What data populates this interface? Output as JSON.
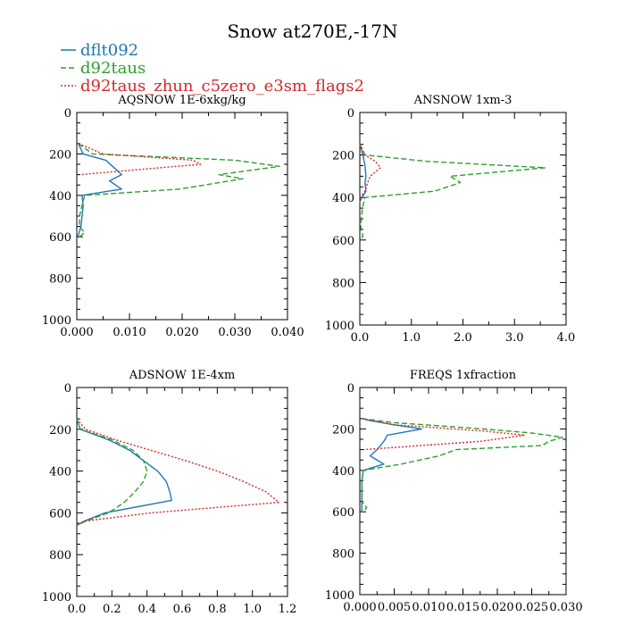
{
  "title": "Snow at270E,-17N",
  "legend": [
    {
      "name": "dflt092",
      "color": "#1f77b4",
      "dash": "solid"
    },
    {
      "name": "d92taus",
      "color": "#2ca02c",
      "dash": "dash"
    },
    {
      "name": "d92taus_zhun_c5zero_e3sm_flags2",
      "color": "#d62728",
      "dash": "dot"
    }
  ],
  "chart_data": [
    {
      "type": "line",
      "title": "AQSNOW  1E-6xkg/kg",
      "xlim": [
        0,
        0.04
      ],
      "xticks": [
        0,
        0.01,
        0.02,
        0.03,
        0.04
      ],
      "xtick_labels": [
        "0.000",
        "0.010",
        "0.020",
        "0.030",
        "0.040"
      ],
      "ylim": [
        0,
        1000
      ],
      "yticks": [
        0,
        200,
        400,
        600,
        800,
        1000
      ],
      "ytick_labels": [
        "0",
        "200",
        "400",
        "600",
        "800",
        "1000"
      ],
      "y_inverted": true,
      "series": [
        {
          "name": "dflt092",
          "y": [
            150,
            200,
            230,
            260,
            300,
            330,
            370,
            400,
            450,
            500,
            550,
            600
          ],
          "x": [
            0.0003,
            0.0012,
            0.0055,
            0.0068,
            0.0085,
            0.0062,
            0.0085,
            0.001,
            0.0012,
            0.001,
            0.0008,
            0.0002
          ]
        },
        {
          "name": "d92taus",
          "y": [
            150,
            200,
            230,
            260,
            300,
            320,
            370,
            400,
            450,
            500,
            550,
            580,
            600
          ],
          "x": [
            0.0003,
            0.003,
            0.03,
            0.0385,
            0.027,
            0.0315,
            0.0195,
            0.0015,
            0.001,
            0.0005,
            0.0005,
            0.0015,
            0.0005
          ]
        },
        {
          "name": "d92taus_zhun_c5zero_e3sm_flags2",
          "y": [
            150,
            200,
            230,
            250,
            300
          ],
          "x": [
            0.0003,
            0.005,
            0.022,
            0.0235,
            0.0005
          ]
        }
      ]
    },
    {
      "type": "line",
      "title": "ANSNOW  1xm-3",
      "xlim": [
        0,
        4
      ],
      "xticks": [
        0,
        1,
        2,
        3,
        4
      ],
      "xtick_labels": [
        "0.0",
        "1.0",
        "2.0",
        "3.0",
        "4.0"
      ],
      "ylim": [
        0,
        1000
      ],
      "yticks": [
        0,
        200,
        400,
        600,
        800,
        1000
      ],
      "ytick_labels": [
        "0",
        "200",
        "400",
        "600",
        "800",
        "1000"
      ],
      "y_inverted": true,
      "series": [
        {
          "name": "dflt092",
          "y": [
            150,
            200,
            250,
            300,
            330,
            370,
            400,
            420
          ],
          "x": [
            0.0,
            0.06,
            0.1,
            0.12,
            0.1,
            0.12,
            0.04,
            0.0
          ]
        },
        {
          "name": "d92taus",
          "y": [
            150,
            200,
            230,
            260,
            300,
            330,
            370,
            400,
            450,
            500,
            550,
            580,
            600
          ],
          "x": [
            0.0,
            0.1,
            1.3,
            3.6,
            1.75,
            1.95,
            1.45,
            0.1,
            0.05,
            0.03,
            0.02,
            0.06,
            0.02
          ]
        },
        {
          "name": "d92taus_zhun_c5zero_e3sm_flags2",
          "y": [
            150,
            200,
            230,
            260,
            300,
            330,
            370,
            400
          ],
          "x": [
            0.0,
            0.1,
            0.3,
            0.4,
            0.2,
            0.15,
            0.1,
            0.0
          ]
        }
      ]
    },
    {
      "type": "line",
      "title": "ADSNOW  1E-4xm",
      "xlim": [
        0,
        1.2
      ],
      "xticks": [
        0,
        0.2,
        0.4,
        0.6,
        0.8,
        1.0,
        1.2
      ],
      "xtick_labels": [
        "0.0",
        "0.2",
        "0.4",
        "0.6",
        "0.8",
        "1.0",
        "1.2"
      ],
      "ylim": [
        0,
        1000
      ],
      "yticks": [
        0,
        200,
        400,
        600,
        800,
        1000
      ],
      "ytick_labels": [
        "0",
        "200",
        "400",
        "600",
        "800",
        "1000"
      ],
      "y_inverted": true,
      "series": [
        {
          "name": "dflt092",
          "y": [
            150,
            200,
            250,
            300,
            350,
            400,
            450,
            500,
            540,
            600,
            640,
            660
          ],
          "x": [
            0.0,
            0.02,
            0.18,
            0.3,
            0.38,
            0.46,
            0.51,
            0.53,
            0.54,
            0.16,
            0.04,
            0.0
          ]
        },
        {
          "name": "d92taus",
          "y": [
            150,
            200,
            250,
            300,
            350,
            400,
            450,
            500,
            550,
            600,
            640,
            660
          ],
          "x": [
            0.0,
            0.02,
            0.2,
            0.32,
            0.38,
            0.4,
            0.38,
            0.33,
            0.27,
            0.18,
            0.05,
            0.0
          ]
        },
        {
          "name": "d92taus_zhun_c5zero_e3sm_flags2",
          "y": [
            150,
            200,
            250,
            300,
            350,
            400,
            450,
            500,
            550,
            600,
            640,
            660
          ],
          "x": [
            0.0,
            0.05,
            0.22,
            0.42,
            0.62,
            0.8,
            0.95,
            1.08,
            1.15,
            0.42,
            0.04,
            0.0
          ]
        }
      ]
    },
    {
      "type": "line",
      "title": "FREQS  1xfraction",
      "xlim": [
        0,
        0.03
      ],
      "xticks": [
        0,
        0.005,
        0.01,
        0.015,
        0.02,
        0.025,
        0.03
      ],
      "xtick_labels": [
        "0.000",
        "0.005",
        "0.010",
        "0.015",
        "0.020",
        "0.025",
        "0.030"
      ],
      "ylim": [
        0,
        1000
      ],
      "yticks": [
        0,
        200,
        400,
        600,
        800,
        1000
      ],
      "ytick_labels": [
        "0",
        "200",
        "400",
        "600",
        "800",
        "1000"
      ],
      "y_inverted": true,
      "series": [
        {
          "name": "dflt092",
          "y": [
            150,
            160,
            180,
            200,
            230,
            260,
            300,
            330,
            370,
            400,
            450,
            500,
            550,
            600
          ],
          "x": [
            0.0003,
            0.0015,
            0.005,
            0.009,
            0.004,
            0.0035,
            0.0025,
            0.0015,
            0.0035,
            0.0005,
            0.0003,
            0.0003,
            0.0003,
            0.0003
          ]
        },
        {
          "name": "d92taus",
          "y": [
            150,
            170,
            200,
            220,
            240,
            260,
            280,
            300,
            330,
            370,
            400,
            450,
            500,
            550,
            580,
            600
          ],
          "x": [
            0.0003,
            0.005,
            0.018,
            0.025,
            0.0295,
            0.0275,
            0.0265,
            0.014,
            0.0115,
            0.006,
            0.0005,
            0.0003,
            0.0003,
            0.0003,
            0.001,
            0.0005
          ]
        },
        {
          "name": "d92taus_zhun_c5zero_e3sm_flags2",
          "y": [
            150,
            180,
            210,
            230,
            260,
            300
          ],
          "x": [
            0.0003,
            0.005,
            0.018,
            0.024,
            0.0175,
            0.0005
          ]
        }
      ]
    }
  ]
}
